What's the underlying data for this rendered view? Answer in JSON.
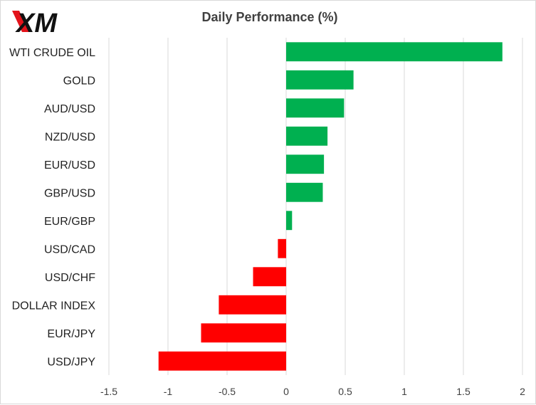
{
  "logo": {
    "text": "XM",
    "accent_color": "#e3131b",
    "text_color": "#111111"
  },
  "chart_data": {
    "type": "bar",
    "orientation": "horizontal",
    "title": "Daily Performance  (%)",
    "xlabel": "",
    "ylabel": "",
    "categories": [
      "WTI CRUDE OIL",
      "GOLD",
      "AUD/USD",
      "NZD/USD",
      "EUR/USD",
      "GBP/USD",
      "EUR/GBP",
      "USD/CAD",
      "USD/CHF",
      "DOLLAR INDEX",
      "EUR/JPY",
      "USD/JPY"
    ],
    "values": [
      1.83,
      0.57,
      0.49,
      0.35,
      0.32,
      0.31,
      0.05,
      -0.07,
      -0.28,
      -0.57,
      -0.72,
      -1.08
    ],
    "xlim": [
      -1.5,
      2
    ],
    "xticks": [
      -1.5,
      -1,
      -0.5,
      0,
      0.5,
      1,
      1.5,
      2
    ],
    "xtick_labels": [
      "-1.5",
      "-1",
      "-0.5",
      "0",
      "0.5",
      "1",
      "1.5",
      "2"
    ],
    "grid": true,
    "legend": "none",
    "colors": {
      "positive": "#00b050",
      "negative": "#ff0000",
      "grid": "#d9d9d9"
    }
  }
}
